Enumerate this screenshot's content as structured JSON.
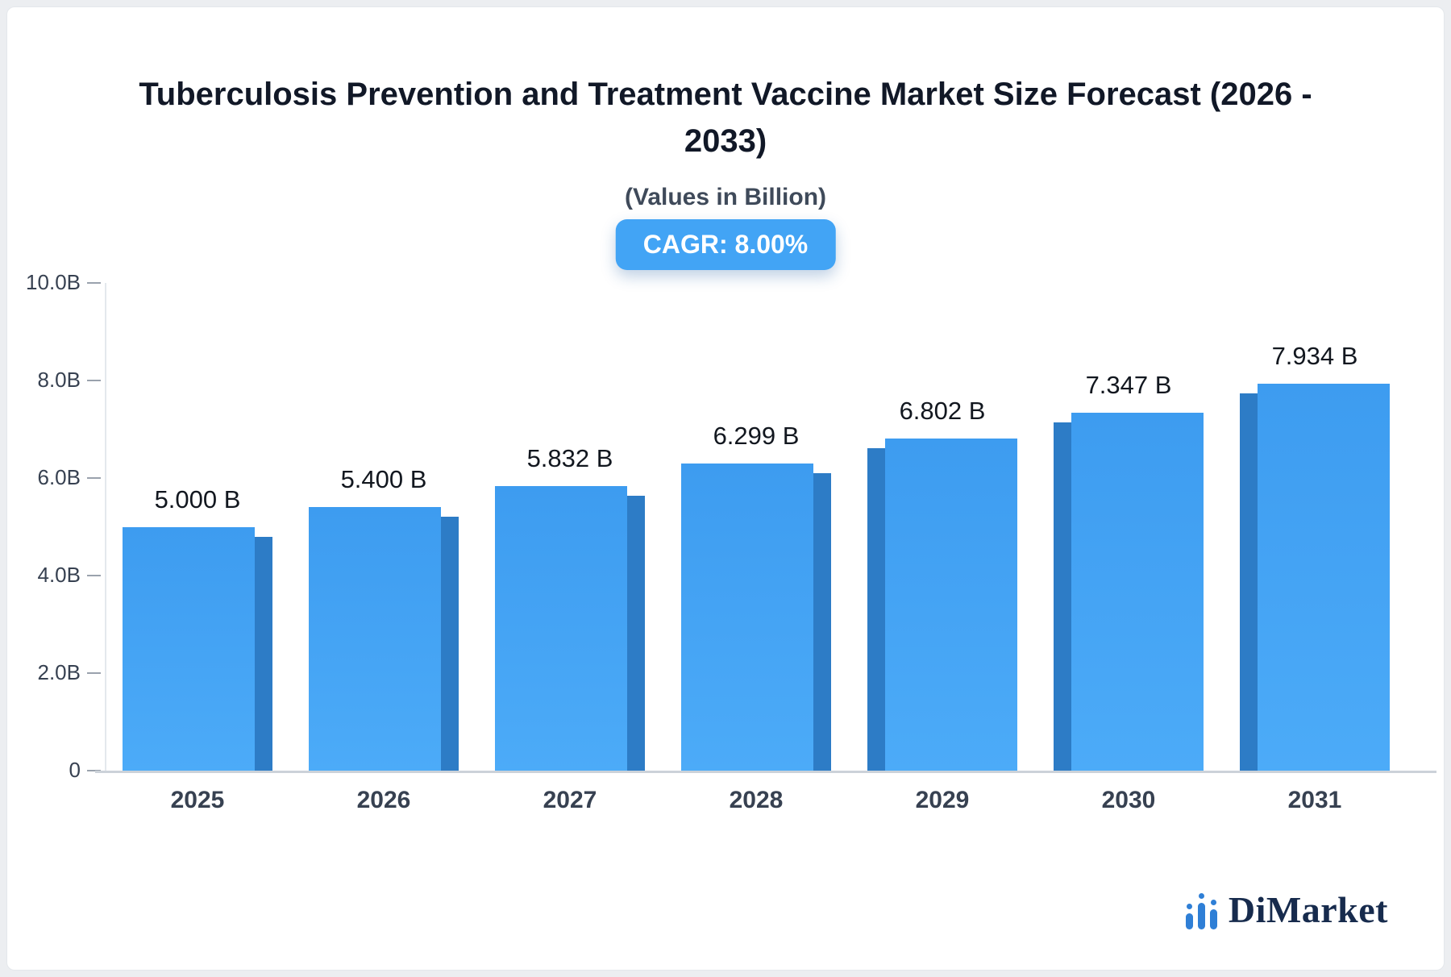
{
  "chart_data": {
    "type": "bar",
    "title": "Tuberculosis Prevention and Treatment Vaccine Market Size Forecast (2026 - 2033)",
    "subtitle": "(Values in Billion)",
    "cagr_label": "CAGR: 8.00%",
    "categories": [
      "2025",
      "2026",
      "2027",
      "2028",
      "2029",
      "2030",
      "2031"
    ],
    "values": [
      5.0,
      5.4,
      5.832,
      6.299,
      6.802,
      7.347,
      7.934
    ],
    "value_labels": [
      "5.000 B",
      "5.400 B",
      "5.832 B",
      "6.299 B",
      "6.802 B",
      "7.347 B",
      "7.934 B"
    ],
    "xlabel": "",
    "ylabel": "",
    "ylim": [
      0,
      10
    ],
    "y_ticks": [
      "10.0B",
      "8.0B",
      "6.0B",
      "4.0B",
      "2.0B",
      "0"
    ],
    "grid": false,
    "legend": false
  },
  "branding": {
    "logo_text": "DiMarket",
    "logo_icon": "bar-chart-icon"
  },
  "colors": {
    "accent_blue": "#3d9cf0",
    "accent_blue_light": "#4cabf8",
    "bar_side": "#2d7cc6",
    "badge_bg": "#42a4f5",
    "logo_blue": "#2f7fd6",
    "logo_navy": "#172b4d",
    "title": "#111827",
    "axis_text": "#374151"
  }
}
